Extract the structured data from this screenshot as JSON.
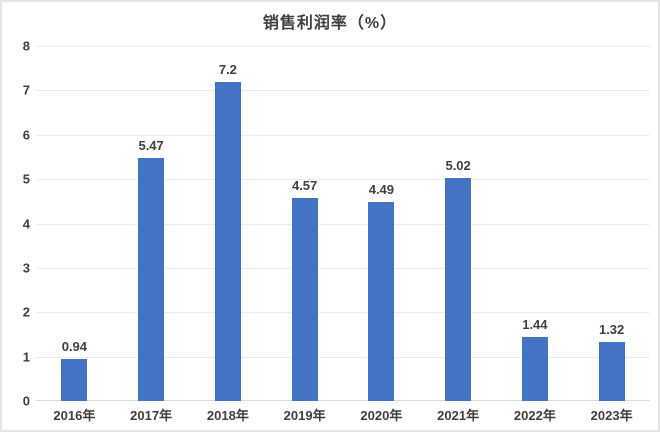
{
  "chart_data": {
    "type": "bar",
    "title": "销售利润率（%）",
    "categories": [
      "2016年",
      "2017年",
      "2018年",
      "2019年",
      "2020年",
      "2021年",
      "2022年",
      "2023年"
    ],
    "values": [
      0.94,
      5.47,
      7.2,
      4.57,
      4.49,
      5.02,
      1.44,
      1.32
    ],
    "value_labels": [
      "0.94",
      "5.47",
      "7.2",
      "4.57",
      "4.49",
      "5.02",
      "1.44",
      "1.32"
    ],
    "xlabel": "",
    "ylabel": "",
    "ylim": [
      0,
      8
    ],
    "y_ticks": [
      0,
      1,
      2,
      3,
      4,
      5,
      6,
      7,
      8
    ],
    "grid": true,
    "legend": "none",
    "colors": {
      "bar_color": "#4472c4",
      "grid_color": "#ebebeb",
      "axis_line_color": "#d9d9d9",
      "text_color": "#3f3f3f",
      "border_color": "#e4e4e4"
    }
  }
}
